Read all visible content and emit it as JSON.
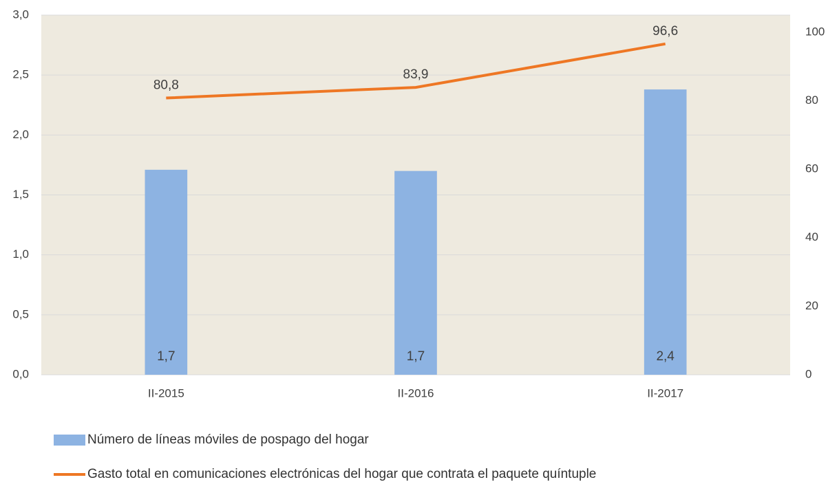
{
  "chart_data": {
    "type": "combo",
    "categories": [
      "II-2015",
      "II-2016",
      "II-2017"
    ],
    "series": [
      {
        "name": "Número de líneas móviles de pospago del hogar",
        "type": "bar",
        "color": "#8db3e2",
        "values": [
          1.71,
          1.7,
          2.38
        ],
        "value_labels": [
          "1,7",
          "1,7",
          "2,4"
        ]
      },
      {
        "name": "Gasto total en comunicaciones electrónicas del hogar que contrata el paquete quíntuple",
        "type": "line",
        "axis": "y2",
        "color": "#ee7724",
        "values": [
          80.8,
          83.9,
          96.6
        ],
        "value_labels": [
          "80,8",
          "83,9",
          "96,6"
        ]
      }
    ],
    "ylim": [
      0,
      3
    ],
    "yticks": [
      {
        "value": 0,
        "label": "0,0"
      },
      {
        "value": 0.5,
        "label": "0,5"
      },
      {
        "value": 1,
        "label": "1,0"
      },
      {
        "value": 1.5,
        "label": "1,5"
      },
      {
        "value": 2,
        "label": "2,0"
      },
      {
        "value": 2.5,
        "label": "2,5"
      },
      {
        "value": 3,
        "label": "3,0"
      }
    ],
    "y2lim": [
      0,
      105
    ],
    "y2ticks": [
      0,
      20,
      40,
      60,
      80,
      100
    ],
    "grid": true,
    "plot_background": "#eeeadf",
    "legend": "bottom"
  }
}
